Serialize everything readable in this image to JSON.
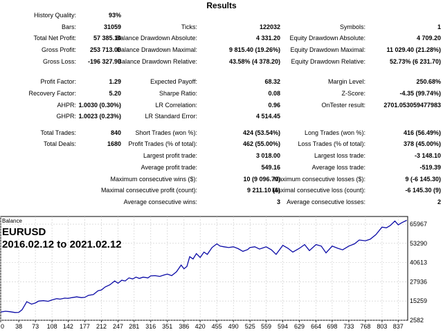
{
  "report": {
    "title": "Results",
    "rows": [
      [
        "History Quality:",
        "93%",
        "",
        "",
        "",
        ""
      ],
      [
        "Bars:",
        "31059",
        "Ticks:",
        "122032",
        "Symbols:",
        "1"
      ],
      [
        "Total Net Profit:",
        "57 385.10",
        "Balance Drawdown Absolute:",
        "4 331.20",
        "Equity Drawdown Absolute:",
        "4 709.20"
      ],
      [
        "Gross Profit:",
        "253 713.00",
        "Balance Drawdown Maximal:",
        "9 815.40 (19.26%)",
        "Equity Drawdown Maximal:",
        "11 029.40 (21.28%)"
      ],
      [
        "Gross Loss:",
        "-196 327.90",
        "Balance Drawdown Relative:",
        "43.58% (4 378.20)",
        "Equity Drawdown Relative:",
        "52.73% (6 231.70)"
      ],
      [
        "Profit Factor:",
        "1.29",
        "Expected Payoff:",
        "68.32",
        "Margin Level:",
        "250.68%"
      ],
      [
        "Recovery Factor:",
        "5.20",
        "Sharpe Ratio:",
        "0.08",
        "Z-Score:",
        "-4.35 (99.74%)"
      ],
      [
        "AHPR:",
        "1.0030 (0.30%)",
        "LR Correlation:",
        "0.96",
        "OnTester result:",
        "2701.053059477983"
      ],
      [
        "GHPR:",
        "1.0023 (0.23%)",
        "LR Standard Error:",
        "4 514.45",
        "",
        ""
      ],
      [
        "Total Trades:",
        "840",
        "Short Trades (won %):",
        "424 (53.54%)",
        "Long Trades (won %):",
        "416 (56.49%)"
      ],
      [
        "Total Deals:",
        "1680",
        "Profit Trades (% of total):",
        "462 (55.00%)",
        "Loss Trades (% of total):",
        "378 (45.00%)"
      ],
      [
        "",
        "",
        "Largest profit trade:",
        "3 018.00",
        "Largest loss trade:",
        "-3 148.10"
      ],
      [
        "",
        "",
        "Average profit trade:",
        "549.16",
        "Average loss trade:",
        "-519.39"
      ],
      [
        "",
        "",
        "Maximum consecutive wins ($):",
        "10 (9 096.70)",
        "Maximum consecutive losses ($):",
        "9 (-6 145.30)"
      ],
      [
        "",
        "",
        "Maximal consecutive profit (count):",
        "9 211.10 (6)",
        "Maximal consecutive loss (count):",
        "-6 145.30 (9)"
      ],
      [
        "",
        "",
        "Average consecutive wins:",
        "3",
        "Average consecutive losses:",
        "2"
      ]
    ]
  },
  "chart_data": {
    "type": "line",
    "caption": "Balance",
    "symbol": "EURUSD",
    "period": "2016.02.12 to 2021.02.12",
    "x_ticks": [
      "0",
      "38",
      "73",
      "108",
      "142",
      "177",
      "212",
      "247",
      "281",
      "316",
      "351",
      "386",
      "420",
      "455",
      "490",
      "525",
      "559",
      "594",
      "629",
      "664",
      "698",
      "733",
      "768",
      "803",
      "837"
    ],
    "y_ticks": [
      "2582",
      "15259",
      "27936",
      "40613",
      "53290",
      "65967"
    ],
    "xlim": [
      0,
      857
    ],
    "ylim": [
      2582,
      71000
    ],
    "colors": {
      "line": "#0a0aa6",
      "grid": "#c8c8c8",
      "frame": "#000000"
    },
    "series": [
      {
        "x": [
          0,
          10,
          20,
          30,
          38,
          45,
          55,
          65,
          73,
          80,
          90,
          100,
          108,
          118,
          125,
          135,
          142,
          150,
          160,
          170,
          177,
          185,
          195,
          205,
          212,
          220,
          230,
          240,
          247,
          255,
          262,
          270,
          278,
          285,
          292,
          300,
          310,
          316,
          325,
          335,
          345,
          351,
          360,
          370,
          380,
          386,
          392,
          398,
          405,
          412,
          420,
          428,
          435,
          445,
          455,
          462,
          470,
          480,
          490,
          500,
          510,
          520,
          525,
          535,
          545,
          559,
          570,
          580,
          594,
          605,
          615,
          629,
          640,
          650,
          664,
          675,
          685,
          698,
          710,
          720,
          733,
          745,
          755,
          768,
          778,
          790,
          803,
          812,
          820,
          830,
          837,
          845,
          855
        ],
        "y": [
          8000,
          8500,
          8200,
          7700,
          7800,
          9500,
          14800,
          13200,
          14000,
          15200,
          15500,
          15100,
          16000,
          16800,
          16500,
          17200,
          17000,
          17500,
          18000,
          17500,
          17700,
          19000,
          19500,
          22000,
          22500,
          24500,
          26000,
          28500,
          27000,
          29000,
          28500,
          30500,
          29800,
          31000,
          30200,
          31000,
          30500,
          31800,
          32000,
          31500,
          32500,
          33000,
          32000,
          34500,
          39000,
          36500,
          38000,
          44500,
          43000,
          46500,
          44000,
          47500,
          46000,
          50500,
          53000,
          51500,
          51000,
          50500,
          51000,
          49800,
          48000,
          49200,
          50500,
          51000,
          49500,
          51000,
          49000,
          46000,
          52000,
          50000,
          47500,
          50000,
          52500,
          48500,
          52500,
          51500,
          47000,
          51500,
          50000,
          49000,
          51500,
          53000,
          55500,
          55000,
          56000,
          59000,
          64000,
          63500,
          65000,
          68000,
          65500,
          67000,
          68500
        ]
      }
    ]
  }
}
